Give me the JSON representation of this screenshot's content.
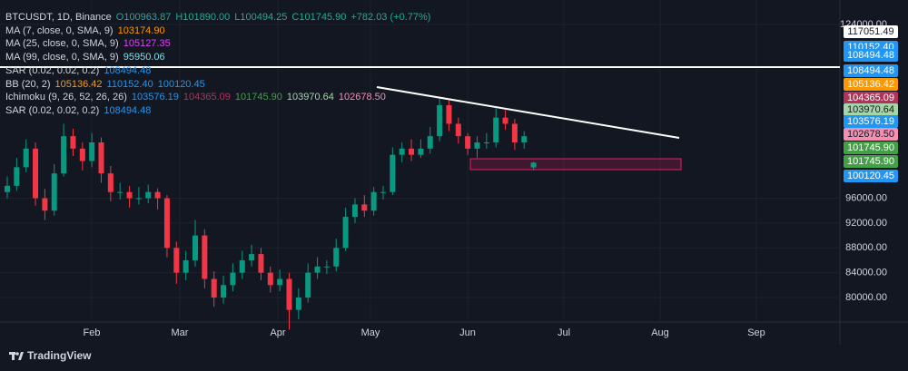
{
  "legend": {
    "symbol": "BTCUSDT, 1D, Binance",
    "ohlc_color": "#22ab94",
    "ohlc": [
      "O100963.87",
      "H101890.00",
      "L100494.25",
      "C101745.90",
      "+782.03 (+0.77%)"
    ],
    "indicators": [
      {
        "name": "MA (7, close, 0, SMA, 9)",
        "values": [
          {
            "text": "103174.90",
            "color": "#ff9800"
          }
        ]
      },
      {
        "name": "MA (25, close, 0, SMA, 9)",
        "values": [
          {
            "text": "105127.35",
            "color": "#e040fb"
          }
        ]
      },
      {
        "name": "MA (99, close, 0, SMA, 9)",
        "values": [
          {
            "text": "95950.06",
            "color": "#80deea"
          }
        ]
      },
      {
        "name": "SAR (0.02, 0.02, 0.2)",
        "values": [
          {
            "text": "108494.48",
            "color": "#2196f3"
          }
        ]
      },
      {
        "name": "BB (20, 2)",
        "values": [
          {
            "text": "105136.42",
            "color": "#ff9800"
          },
          {
            "text": "110152.40",
            "color": "#2196f3"
          },
          {
            "text": "100120.45",
            "color": "#2196f3"
          }
        ]
      },
      {
        "name": "Ichimoku (9, 26, 52, 26, 26)",
        "values": [
          {
            "text": "103576.19",
            "color": "#2196f3"
          },
          {
            "text": "104365.09",
            "color": "#b2325a"
          },
          {
            "text": "101745.90",
            "color": "#43a047"
          },
          {
            "text": "103970.64",
            "color": "#a5d6a7"
          },
          {
            "text": "102678.50",
            "color": "#f48fb1"
          }
        ]
      },
      {
        "name": "SAR (0.02, 0.02, 0.2)",
        "values": [
          {
            "text": "108494.48",
            "color": "#2196f3"
          }
        ]
      }
    ]
  },
  "chart_data": {
    "type": "candlestick",
    "up_color": "#089981",
    "down_color": "#f23645",
    "ylim": [
      76050,
      127950
    ],
    "yticks": [
      {
        "value": 124000,
        "label": "124000.00"
      },
      {
        "value": 96000,
        "label": "96000.00"
      },
      {
        "value": 92000,
        "label": "92000.00"
      },
      {
        "value": 88000,
        "label": "88000.00"
      },
      {
        "value": 84000,
        "label": "84000.00"
      },
      {
        "value": 80000,
        "label": "80000.00"
      }
    ],
    "months": [
      "Feb",
      "Mar",
      "Apr",
      "May",
      "Jun",
      "Jul",
      "Aug",
      "Sep"
    ],
    "candles": [
      [
        97000,
        99500,
        96000,
        98000
      ],
      [
        98000,
        102500,
        97200,
        101000
      ],
      [
        101000,
        105500,
        100200,
        104000
      ],
      [
        104000,
        105000,
        94800,
        96000
      ],
      [
        96000,
        97500,
        92500,
        94000
      ],
      [
        94000,
        101500,
        93200,
        100000
      ],
      [
        100000,
        108000,
        99500,
        106000
      ],
      [
        106000,
        107200,
        102800,
        104000
      ],
      [
        104000,
        105000,
        100500,
        102000
      ],
      [
        102000,
        106500,
        101000,
        105000
      ],
      [
        105000,
        105800,
        98500,
        100000
      ],
      [
        100000,
        101200,
        95500,
        97000
      ],
      [
        97000,
        98500,
        95800,
        97000
      ],
      [
        97000,
        98000,
        94500,
        96000
      ],
      [
        96000,
        97800,
        95000,
        96000
      ],
      [
        96000,
        98200,
        95200,
        97000
      ],
      [
        97000,
        97600,
        94200,
        96000
      ],
      [
        96000,
        96500,
        86500,
        88000
      ],
      [
        88000,
        89000,
        82200,
        84000
      ],
      [
        84000,
        87500,
        82800,
        86000
      ],
      [
        86000,
        92500,
        85000,
        90000
      ],
      [
        90000,
        91000,
        81500,
        83000
      ],
      [
        83000,
        84200,
        78500,
        80000
      ],
      [
        80000,
        83500,
        79000,
        82000
      ],
      [
        82000,
        85500,
        81000,
        84000
      ],
      [
        84000,
        87500,
        83000,
        86000
      ],
      [
        86000,
        88500,
        85000,
        87000
      ],
      [
        87000,
        88000,
        82800,
        84000
      ],
      [
        84000,
        85000,
        80800,
        82000
      ],
      [
        82000,
        84500,
        81000,
        83000
      ],
      [
        83000,
        84000,
        74800,
        78000
      ],
      [
        78000,
        81500,
        76500,
        80000
      ],
      [
        80000,
        85500,
        79200,
        84000
      ],
      [
        84000,
        86500,
        83000,
        85000
      ],
      [
        85000,
        86000,
        83800,
        85000
      ],
      [
        85000,
        89500,
        84200,
        88000
      ],
      [
        88000,
        94500,
        87500,
        93000
      ],
      [
        93000,
        96000,
        92000,
        95000
      ],
      [
        95000,
        96500,
        93000,
        94000
      ],
      [
        94000,
        97800,
        93200,
        97000
      ],
      [
        97000,
        98000,
        95800,
        97000
      ],
      [
        97000,
        104200,
        96500,
        103000
      ],
      [
        103000,
        105000,
        101800,
        104000
      ],
      [
        104000,
        105500,
        102000,
        103000
      ],
      [
        103000,
        105500,
        102500,
        104000
      ],
      [
        104000,
        107500,
        103200,
        106000
      ],
      [
        106000,
        112000,
        105200,
        111000
      ],
      [
        111000,
        111800,
        106800,
        108000
      ],
      [
        108000,
        109000,
        104800,
        106000
      ],
      [
        106000,
        106500,
        103000,
        104000
      ],
      [
        104000,
        106000,
        102500,
        105000
      ],
      [
        105000,
        106500,
        104000,
        105000
      ],
      [
        105000,
        110500,
        104200,
        109000
      ],
      [
        109000,
        110200,
        107000,
        108000
      ],
      [
        108000,
        108800,
        103800,
        105000
      ],
      [
        105000,
        106800,
        104000,
        106000
      ],
      [
        100963.87,
        101890.0,
        100494.25,
        101745.9
      ]
    ]
  },
  "price_tags": [
    {
      "text": "117051.49",
      "bg": "#ffffff",
      "fg": "#131722"
    },
    {
      "text": "110152.40",
      "bg": "#2196f3",
      "fg": "#ffffff"
    },
    {
      "text": "108494.48",
      "bg": "#2196f3",
      "fg": "#ffffff"
    },
    {
      "text": "108494.48",
      "bg": "#2196f3",
      "fg": "#ffffff"
    },
    {
      "text": "105136.42",
      "bg": "#ff9800",
      "fg": "#ffffff"
    },
    {
      "text": "104365.09",
      "bg": "#b2325a",
      "fg": "#ffffff"
    },
    {
      "text": "103970.64",
      "bg": "#a5d6a7",
      "fg": "#131722"
    },
    {
      "text": "103576.19",
      "bg": "#2196f3",
      "fg": "#ffffff"
    },
    {
      "text": "102678.50",
      "bg": "#f48fb1",
      "fg": "#131722"
    },
    {
      "text": "101745.90",
      "bg": "#43a047",
      "fg": "#ffffff"
    },
    {
      "text": "101745.90",
      "bg": "#43a047",
      "fg": "#ffffff"
    },
    {
      "text": "100120.45",
      "bg": "#2196f3",
      "fg": "#ffffff"
    }
  ],
  "footer": {
    "brand": "TradingView"
  }
}
